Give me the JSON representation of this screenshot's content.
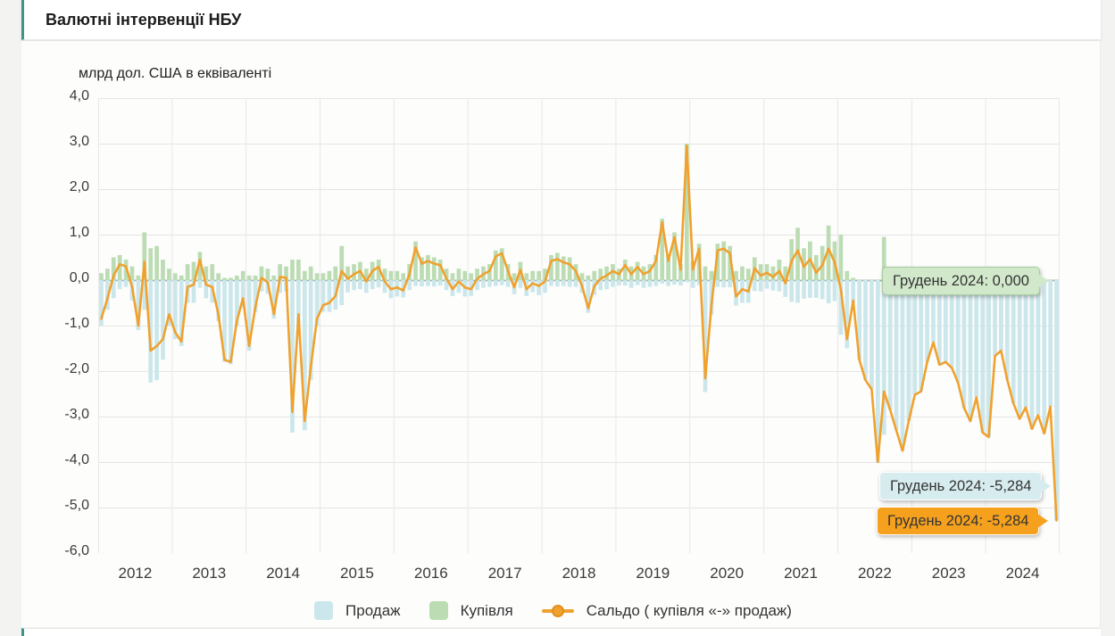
{
  "header": {
    "title": "Валютні інтервенції НБУ"
  },
  "chart": {
    "subtitle": "млрд дол. США в еквіваленті",
    "zero_line_color": "#9cb5a9",
    "grid_color": "#e5e5e5",
    "year_grid_color": "#e8e8e8"
  },
  "legend": {
    "items": [
      {
        "label": "Продаж",
        "color": "#cbe7eb",
        "type": "bar"
      },
      {
        "label": "Купівля",
        "color": "#bcdcb4",
        "type": "bar"
      },
      {
        "label": "Сальдо ( купівля «-» продаж)",
        "color": "#f0a12e",
        "type": "line"
      }
    ]
  },
  "tooltips": [
    {
      "series": "Купівля",
      "label": "Грудень 2024: 0,000"
    },
    {
      "series": "Продаж",
      "label": "Грудень 2024: -5,284"
    },
    {
      "series": "Сальдо",
      "label": "Грудень 2024: -5,284"
    }
  ],
  "chart_data": {
    "type": "bar",
    "title": "Валютні інтервенції НБУ",
    "ylabel": "млрд дол. США в еквіваленті",
    "ylim": [
      -6,
      4
    ],
    "grid": true,
    "legend_position": "bottom",
    "frequency": "monthly",
    "x_start": "2012-01",
    "x_end": "2024-12",
    "x_year_labels": [
      "2012",
      "2013",
      "2014",
      "2015",
      "2016",
      "2017",
      "2018",
      "2019",
      "2020",
      "2021",
      "2022",
      "2023",
      "2024"
    ],
    "y_ticks": [
      "4,0",
      "3,0",
      "2,0",
      "1,0",
      "0,0",
      "-1,0",
      "-2,0",
      "-3,0",
      "-4,0",
      "-5,0",
      "-6,0"
    ],
    "series": [
      {
        "name": "Продаж",
        "type": "bar",
        "color": "#cbe7eb",
        "values": [
          -1.0,
          -0.65,
          -0.4,
          -0.2,
          -0.15,
          -0.45,
          -1.1,
          -0.65,
          -2.25,
          -2.2,
          -1.75,
          -1.0,
          -1.3,
          -1.45,
          -0.5,
          -0.5,
          -0.17,
          -0.4,
          -0.5,
          -0.9,
          -1.8,
          -1.85,
          -1.0,
          -0.6,
          -1.55,
          -0.7,
          -0.25,
          -0.3,
          -0.85,
          -0.28,
          -0.25,
          -3.35,
          -1.2,
          -3.3,
          -2.2,
          -1.0,
          -0.7,
          -0.7,
          -0.65,
          -0.55,
          -0.27,
          -0.22,
          -0.2,
          -0.28,
          -0.2,
          -0.16,
          -0.28,
          -0.4,
          -0.36,
          -0.38,
          -0.22,
          -0.13,
          -0.14,
          -0.13,
          -0.14,
          -0.12,
          -0.22,
          -0.35,
          -0.28,
          -0.36,
          -0.35,
          -0.22,
          -0.17,
          -0.15,
          -0.13,
          -0.11,
          -0.15,
          -0.31,
          -0.17,
          -0.35,
          -0.27,
          -0.33,
          -0.28,
          -0.13,
          -0.14,
          -0.13,
          -0.15,
          -0.15,
          -0.28,
          -0.72,
          -0.33,
          -0.22,
          -0.2,
          -0.15,
          -0.12,
          -0.12,
          -0.17,
          -0.11,
          -0.17,
          -0.15,
          -0.13,
          -0.08,
          -0.13,
          -0.1,
          -0.12,
          -0.05,
          -0.17,
          -0.11,
          -2.46,
          -0.76,
          -0.15,
          -0.16,
          -0.16,
          -0.56,
          -0.5,
          -0.5,
          -0.24,
          -0.25,
          -0.19,
          -0.23,
          -0.25,
          -0.37,
          -0.48,
          -0.5,
          -0.41,
          -0.39,
          -0.39,
          -0.42,
          -0.51,
          -0.46,
          -1.2,
          -1.5,
          -0.5,
          -1.75,
          -2.2,
          -2.4,
          -4.0,
          -3.4,
          -2.85,
          -3.3,
          -3.75,
          -3.1,
          -2.52,
          -2.45,
          -1.8,
          -1.37,
          -1.86,
          -1.8,
          -1.93,
          -2.25,
          -2.81,
          -3.1,
          -2.58,
          -3.35,
          -3.45,
          -1.67,
          -1.55,
          -2.19,
          -2.71,
          -3.05,
          -2.8,
          -3.27,
          -2.97,
          -3.37,
          -2.78,
          -5.284
        ]
      },
      {
        "name": "Купівля",
        "type": "bar",
        "color": "#bcdcb4",
        "values": [
          0.15,
          0.25,
          0.5,
          0.55,
          0.45,
          0.3,
          0.1,
          1.05,
          0.7,
          0.75,
          0.45,
          0.25,
          0.15,
          0.1,
          0.35,
          0.4,
          0.62,
          0.3,
          0.35,
          0.15,
          0.05,
          0.05,
          0.1,
          0.2,
          0.1,
          0.1,
          0.3,
          0.25,
          0.1,
          0.35,
          0.3,
          0.45,
          0.45,
          0.2,
          0.3,
          0.15,
          0.15,
          0.2,
          0.3,
          0.75,
          0.3,
          0.35,
          0.4,
          0.25,
          0.4,
          0.45,
          0.25,
          0.2,
          0.2,
          0.15,
          0.35,
          0.85,
          0.5,
          0.55,
          0.5,
          0.45,
          0.25,
          0.15,
          0.25,
          0.2,
          0.15,
          0.25,
          0.3,
          0.35,
          0.65,
          0.7,
          0.35,
          0.15,
          0.4,
          0.15,
          0.2,
          0.2,
          0.25,
          0.55,
          0.6,
          0.52,
          0.5,
          0.35,
          0.15,
          0.1,
          0.2,
          0.25,
          0.3,
          0.35,
          0.25,
          0.45,
          0.3,
          0.4,
          0.3,
          0.35,
          0.55,
          1.35,
          0.55,
          1.05,
          0.35,
          3.0,
          0.4,
          0.8,
          0.3,
          0.2,
          0.8,
          0.85,
          0.75,
          0.2,
          0.3,
          0.25,
          0.5,
          0.35,
          0.35,
          0.3,
          0.45,
          0.3,
          0.9,
          1.15,
          0.7,
          0.85,
          0.55,
          0.75,
          1.2,
          0.85,
          1.0,
          0.2,
          0.05,
          0,
          0,
          0,
          0,
          0.95,
          0,
          0,
          0,
          0,
          0,
          0,
          0,
          0,
          0,
          0,
          0,
          0,
          0,
          0,
          0,
          0,
          0,
          0,
          0,
          0,
          0,
          0,
          0,
          0,
          0,
          0,
          0,
          0
        ]
      },
      {
        "name": "Сальдо ( купівля «-» продаж)",
        "type": "line",
        "color": "#f0a12e",
        "values": [
          -0.85,
          -0.4,
          0.1,
          0.35,
          0.3,
          -0.15,
          -1.0,
          0.4,
          -1.55,
          -1.45,
          -1.3,
          -0.75,
          -1.15,
          -1.35,
          -0.15,
          -0.1,
          0.45,
          -0.1,
          -0.15,
          -0.75,
          -1.75,
          -1.8,
          -0.9,
          -0.4,
          -1.45,
          -0.6,
          0.05,
          -0.05,
          -0.75,
          0.07,
          0.05,
          -2.9,
          -0.75,
          -3.1,
          -1.9,
          -0.85,
          -0.55,
          -0.5,
          -0.35,
          0.2,
          0.03,
          0.13,
          0.2,
          -0.03,
          0.2,
          0.29,
          -0.03,
          -0.2,
          -0.16,
          -0.23,
          0.13,
          0.72,
          0.36,
          0.42,
          0.36,
          0.33,
          0.03,
          -0.2,
          -0.03,
          -0.16,
          -0.2,
          0.03,
          0.13,
          0.2,
          0.52,
          0.59,
          0.2,
          -0.16,
          0.23,
          -0.2,
          -0.07,
          -0.13,
          -0.03,
          0.42,
          0.46,
          0.39,
          0.35,
          0.2,
          -0.13,
          -0.62,
          -0.13,
          0.03,
          0.1,
          0.2,
          0.13,
          0.33,
          0.13,
          0.29,
          0.13,
          0.2,
          0.42,
          1.27,
          0.42,
          0.95,
          0.23,
          2.95,
          0.23,
          0.69,
          -2.16,
          -0.56,
          0.65,
          0.69,
          0.59,
          -0.36,
          -0.2,
          -0.25,
          0.26,
          0.1,
          0.16,
          0.07,
          0.2,
          -0.07,
          0.42,
          0.65,
          0.29,
          0.46,
          0.16,
          0.33,
          0.69,
          0.39,
          -0.2,
          -1.3,
          -0.45,
          -1.75,
          -2.2,
          -2.4,
          -4.0,
          -2.45,
          -2.85,
          -3.3,
          -3.75,
          -3.1,
          -2.52,
          -2.45,
          -1.8,
          -1.37,
          -1.86,
          -1.8,
          -1.93,
          -2.25,
          -2.81,
          -3.1,
          -2.58,
          -3.35,
          -3.45,
          -1.67,
          -1.55,
          -2.19,
          -2.71,
          -3.05,
          -2.8,
          -3.27,
          -2.97,
          -3.37,
          -2.78,
          -5.284
        ]
      }
    ]
  }
}
